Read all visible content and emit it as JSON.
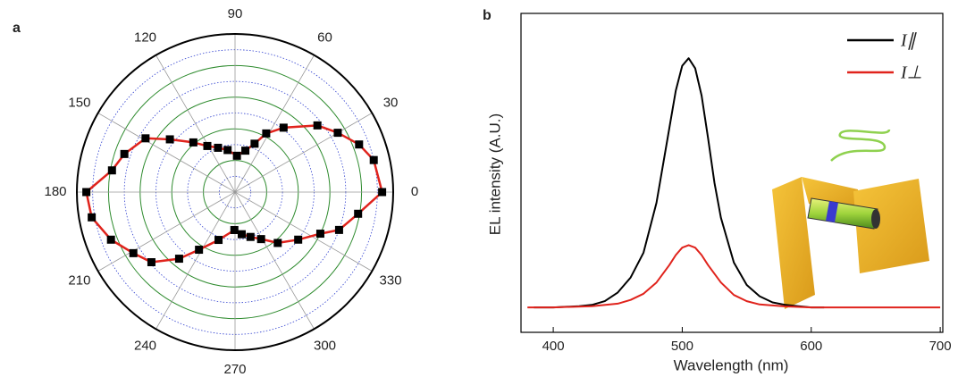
{
  "chart_data": [
    {
      "type": "polar",
      "panel_label": "a",
      "theta": [
        0,
        13,
        21,
        30,
        39,
        53,
        62,
        68,
        76,
        87,
        100,
        111,
        121,
        130,
        141,
        149,
        161,
        170,
        180,
        190,
        201,
        211,
        220,
        230,
        238,
        251,
        269,
        279,
        289,
        299,
        310,
        323,
        334,
        340,
        350
      ],
      "r": [
        0.93,
        0.9,
        0.84,
        0.75,
        0.67,
        0.51,
        0.42,
        0.33,
        0.27,
        0.23,
        0.27,
        0.3,
        0.34,
        0.41,
        0.53,
        0.66,
        0.74,
        0.79,
        0.94,
        0.92,
        0.84,
        0.75,
        0.69,
        0.55,
        0.43,
        0.32,
        0.24,
        0.27,
        0.3,
        0.34,
        0.42,
        0.5,
        0.6,
        0.7,
        0.79
      ],
      "rlim": [
        0,
        1
      ],
      "rticks": [
        0.2,
        0.4,
        0.6,
        0.8,
        1
      ],
      "rminor": [
        0.1,
        0.3,
        0.5,
        0.7,
        0.9
      ],
      "thetaticks": [
        0,
        30,
        60,
        90,
        120,
        150,
        180,
        210,
        240,
        270,
        300,
        330
      ],
      "marker_color": "#000000",
      "line_color": "#e0231c",
      "grid_color": "#2e8b2e",
      "minor_grid_color": "#3040d0"
    },
    {
      "type": "line",
      "panel_label": "b",
      "xlabel": "Wavelength (nm)",
      "ylabel": "EL intensity (A.U.)",
      "xlim": [
        375,
        702
      ],
      "ylim": [
        -0.1,
        1.18
      ],
      "xticks": [
        400,
        500,
        600,
        700
      ],
      "legend": "upper right",
      "series": [
        {
          "name": "I∥",
          "color": "#000000",
          "x": [
            385,
            400,
            420,
            430,
            440,
            450,
            460,
            470,
            480,
            490,
            495,
            500,
            505,
            510,
            515,
            520,
            525,
            530,
            540,
            550,
            560,
            570,
            580,
            590,
            600,
            610
          ],
          "values": [
            0,
            0,
            0.005,
            0.01,
            0.025,
            0.06,
            0.12,
            0.22,
            0.42,
            0.72,
            0.87,
            0.97,
            1.0,
            0.96,
            0.85,
            0.68,
            0.5,
            0.36,
            0.18,
            0.09,
            0.045,
            0.02,
            0.01,
            0.005,
            0,
            0
          ]
        },
        {
          "name": "I⊥",
          "color": "#e0231c",
          "x": [
            380,
            400,
            430,
            450,
            460,
            470,
            480,
            490,
            495,
            500,
            505,
            510,
            515,
            520,
            530,
            540,
            550,
            560,
            580,
            600,
            700
          ],
          "values": [
            0,
            0,
            0.005,
            0.015,
            0.03,
            0.055,
            0.1,
            0.17,
            0.21,
            0.24,
            0.25,
            0.24,
            0.21,
            0.17,
            0.1,
            0.05,
            0.025,
            0.012,
            0.004,
            0,
            0
          ]
        }
      ]
    }
  ]
}
